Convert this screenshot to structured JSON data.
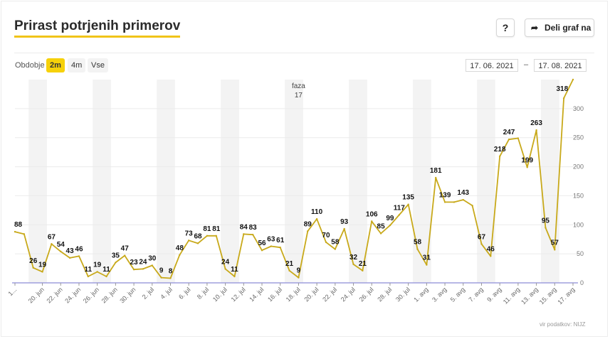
{
  "header": {
    "title": "Prirast potrjenih primerov",
    "help_label": "?",
    "share_label": "Deli graf na",
    "share_icon": "share-arrow-icon"
  },
  "controls": {
    "period_label": "Obdobje",
    "periods": [
      "2m",
      "4m",
      "Vse"
    ],
    "selected_period": "2m",
    "date_from": "17. 06. 2021",
    "date_separator": "–",
    "date_to": "17. 08. 2021"
  },
  "source": "vir podatkov: NIJZ",
  "chart_data": {
    "type": "line",
    "title": "",
    "color": "#c8a91a",
    "x": [
      "17. jun",
      "18. jun",
      "19. jun",
      "20. jun",
      "21. jun",
      "22. jun",
      "23. jun",
      "24. jun",
      "25. jun",
      "26. jun",
      "27. jun",
      "28. jun",
      "29. jun",
      "30. jun",
      "1. jul",
      "2. jul",
      "3. jul",
      "4. jul",
      "5. jul",
      "6. jul",
      "7. jul",
      "8. jul",
      "9. jul",
      "10. jul",
      "11. jul",
      "12. jul",
      "13. jul",
      "14. jul",
      "15. jul",
      "16. jul",
      "17. jul",
      "18. jul",
      "19. jul",
      "20. jul",
      "21. jul",
      "22. jul",
      "23. jul",
      "24. jul",
      "25. jul",
      "26. jul",
      "27. jul",
      "28. jul",
      "29. jul",
      "30. jul",
      "31. jul",
      "1. avg",
      "2. avg",
      "3. avg",
      "4. avg",
      "5. avg",
      "6. avg",
      "7. avg",
      "8. avg",
      "9. avg",
      "10. avg",
      "11. avg",
      "12. avg",
      "13. avg",
      "14. avg",
      "15. avg",
      "16. avg",
      "17. avg"
    ],
    "values": [
      88,
      84,
      26,
      19,
      67,
      54,
      43,
      46,
      11,
      19,
      11,
      35,
      47,
      23,
      24,
      30,
      9,
      8,
      48,
      73,
      68,
      81,
      81,
      24,
      11,
      84,
      83,
      56,
      63,
      61,
      21,
      9,
      89,
      110,
      70,
      58,
      93,
      32,
      21,
      106,
      85,
      99,
      117,
      135,
      58,
      31,
      181,
      139,
      139,
      143,
      133,
      67,
      46,
      218,
      247,
      249,
      199,
      263,
      95,
      57,
      318,
      350
    ],
    "labeled_indices": [
      0,
      2,
      3,
      4,
      5,
      6,
      7,
      8,
      9,
      10,
      11,
      12,
      13,
      14,
      15,
      16,
      17,
      18,
      19,
      20,
      21,
      22,
      23,
      24,
      25,
      26,
      27,
      28,
      29,
      30,
      31,
      32,
      33,
      34,
      35,
      36,
      37,
      38,
      39,
      40,
      41,
      42,
      43,
      44,
      45,
      46,
      47,
      49,
      51,
      52,
      53,
      54,
      56,
      57,
      58,
      59,
      60
    ],
    "x_tick_labels": [
      "1...",
      "20. jun",
      "22. jun",
      "24. jun",
      "26. jun",
      "28. jun",
      "30. jun",
      "2. jul",
      "4. jul",
      "6. jul",
      "8. jul",
      "10. jul",
      "12. jul",
      "14. jul",
      "16. jul",
      "18. jul",
      "20. jul",
      "22. jul",
      "24. jul",
      "26. jul",
      "28. jul",
      "30. jul",
      "1. avg",
      "3. avg",
      "5. avg",
      "7. avg",
      "9. avg",
      "11. avg",
      "13. avg",
      "15. avg",
      "17. avg"
    ],
    "y_ticks": [
      0,
      50,
      100,
      150,
      200,
      250,
      300
    ],
    "ylim": [
      0,
      350
    ],
    "weekend_band_start_indices": [
      2,
      9,
      16,
      23,
      30,
      37,
      44,
      51,
      58
    ],
    "annotations": [
      {
        "x": "18. jul",
        "label_line1": "faza",
        "label_line2": "17"
      }
    ],
    "grid": true
  }
}
